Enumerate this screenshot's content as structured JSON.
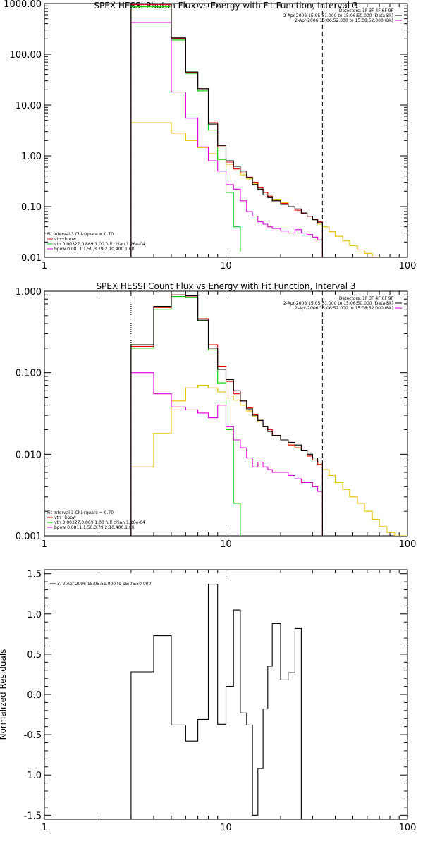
{
  "colors": {
    "data": "#000000",
    "total": "#e00000",
    "vth": "#00cc00",
    "bpow": "#dd00dd",
    "bkg": "#e6c000",
    "frame": "#000000"
  },
  "chart_data": [
    {
      "type": "line",
      "title": "SPEX HESSI Photon Flux vs Energy with Fit Function, Interval 3",
      "xscale": "log",
      "yscale": "log",
      "xlim": [
        1,
        100
      ],
      "ylim": [
        0.01,
        1000
      ],
      "xticks": [
        {
          "v": 1,
          "label": "1"
        },
        {
          "v": 10,
          "label": "10"
        },
        {
          "v": 100,
          "label": "100"
        }
      ],
      "yticks": [
        {
          "v": 0.01,
          "label": "0.01"
        },
        {
          "v": 0.1,
          "label": "0.10"
        },
        {
          "v": 1,
          "label": "1.00"
        },
        {
          "v": 10,
          "label": "10.00"
        },
        {
          "v": 100,
          "label": "100.00"
        },
        {
          "v": 1000,
          "label": "1000.00"
        }
      ],
      "xlabel": "",
      "ylabel": "",
      "vlines": [
        {
          "x": 3.0,
          "style": "dotted"
        },
        {
          "x": 34,
          "style": "dashed"
        }
      ],
      "legend_top": {
        "position": "top-right",
        "lines": [
          {
            "text": "Detectors: 1F 3F 4F 6F 9F",
            "color": ""
          },
          {
            "text": "2-Apr-2006 15:05:51.000 to 15:06:50.000 (Data-Bk)",
            "color": "#000000"
          },
          {
            "text": "2-Apr-2006 15:06:52.000 to 15:08:52.000 (Bk)",
            "color": "#dd00dd"
          }
        ]
      },
      "legend_bottom": {
        "position": "bottom-left",
        "lines": [
          {
            "text": "Fit Interval 3   Chi-square = 0.70",
            "color": ""
          },
          {
            "text": "vth+bpow",
            "color": "#e00000"
          },
          {
            "text": "vth 0.00327,0.869,1.00   full chian 1.26e-04",
            "color": "#00cc00"
          },
          {
            "text": "bpow 0.0811,1.50,3.79,2.10,400,1.00",
            "color": "#dd00dd"
          }
        ]
      },
      "series": [
        {
          "key": "data",
          "edges": [
            3,
            4,
            5,
            6,
            7,
            8,
            9,
            10,
            11,
            12,
            13,
            14,
            15,
            16,
            17,
            18,
            20,
            22,
            24,
            26,
            28,
            30,
            32,
            34
          ],
          "values": [
            1000,
            1000,
            210,
            45,
            21,
            4.2,
            1.6,
            0.8,
            0.62,
            0.5,
            0.37,
            0.27,
            0.22,
            0.17,
            0.15,
            0.13,
            0.11,
            0.1,
            0.09,
            0.075,
            0.065,
            0.055,
            0.048
          ]
        },
        {
          "key": "total",
          "edges": [
            3,
            4,
            5,
            6,
            7,
            8,
            9,
            10,
            11,
            12,
            13,
            14,
            15,
            16,
            17,
            18,
            20,
            22,
            24,
            26,
            28,
            30,
            32,
            34
          ],
          "values": [
            950,
            950,
            205,
            44,
            21,
            4.5,
            1.5,
            0.75,
            0.55,
            0.46,
            0.38,
            0.3,
            0.24,
            0.19,
            0.16,
            0.13,
            0.115,
            0.1,
            0.085,
            0.074,
            0.064,
            0.056,
            0.05
          ]
        },
        {
          "key": "vth",
          "edges": [
            3,
            4,
            5,
            6,
            7,
            8,
            9,
            10,
            11,
            12
          ],
          "values": [
            860,
            860,
            190,
            42,
            19,
            3.2,
            0.85,
            0.19,
            0.04,
            0.013
          ]
        },
        {
          "key": "bpow",
          "edges": [
            3,
            4,
            5,
            6,
            7,
            8,
            9,
            10,
            11,
            12,
            13,
            14,
            15,
            16,
            17,
            18,
            20,
            22,
            24,
            26,
            28,
            30,
            32,
            34
          ],
          "values": [
            420,
            420,
            18,
            5.5,
            1.5,
            0.8,
            0.5,
            0.27,
            0.22,
            0.13,
            0.08,
            0.065,
            0.05,
            0.045,
            0.04,
            0.037,
            0.033,
            0.03,
            0.035,
            0.03,
            0.028,
            0.025,
            0.022
          ]
        },
        {
          "key": "bkg",
          "edges": [
            3,
            4,
            5,
            6,
            7,
            8,
            9,
            10,
            11,
            12,
            13,
            14,
            15,
            16,
            17,
            18,
            20,
            22,
            24,
            26,
            28,
            30,
            32,
            34,
            37,
            40,
            44,
            48,
            53,
            58,
            64,
            70
          ],
          "values": [
            4.5,
            4.5,
            2.8,
            2,
            1.45,
            1.1,
            0.85,
            0.68,
            0.55,
            0.42,
            0.35,
            0.28,
            0.22,
            0.19,
            0.16,
            0.14,
            0.12,
            0.1,
            0.085,
            0.075,
            0.065,
            0.055,
            0.045,
            0.04,
            0.032,
            0.026,
            0.021,
            0.017,
            0.014,
            0.012,
            0.01
          ]
        }
      ]
    },
    {
      "type": "line",
      "title": "SPEX HESSI Count Flux vs Energy with Fit Function, Interval 3",
      "xscale": "log",
      "yscale": "log",
      "xlim": [
        1,
        100
      ],
      "ylim": [
        0.001,
        1
      ],
      "xticks": [
        {
          "v": 1,
          "label": "1"
        },
        {
          "v": 10,
          "label": "10"
        },
        {
          "v": 100,
          "label": "100"
        }
      ],
      "yticks": [
        {
          "v": 0.001,
          "label": "0.001"
        },
        {
          "v": 0.01,
          "label": "0.010"
        },
        {
          "v": 0.1,
          "label": "0.100"
        },
        {
          "v": 1,
          "label": "1.000"
        }
      ],
      "xlabel": "",
      "ylabel": "",
      "vlines": [
        {
          "x": 3.0,
          "style": "dotted"
        },
        {
          "x": 34,
          "style": "dashed"
        }
      ],
      "legend_top": {
        "position": "top-right",
        "lines": [
          {
            "text": "Detectors: 1F 3F 4F 6F 9F",
            "color": ""
          },
          {
            "text": "2-Apr-2006 15:05:51.000 to 15:06:50.000 (Data-Bk)",
            "color": "#000000"
          },
          {
            "text": "2-Apr-2006 15:06:52.000 to 15:08:52.000 (Bk)",
            "color": "#dd00dd"
          }
        ]
      },
      "legend_bottom": {
        "position": "bottom-left",
        "lines": [
          {
            "text": "Fit Interval 3   Chi-square = 0.70",
            "color": ""
          },
          {
            "text": "vth+bpow",
            "color": "#e00000"
          },
          {
            "text": "vth 0.00327,0.869,1.00   full chian 1.26e-04",
            "color": "#00cc00"
          },
          {
            "text": "bpow 0.0811,1.50,3.79,2.10,400,1.00",
            "color": "#dd00dd"
          }
        ]
      },
      "series": [
        {
          "key": "data",
          "edges": [
            3,
            4,
            5,
            6,
            7,
            8,
            9,
            10,
            11,
            12,
            13,
            14,
            15,
            16,
            17,
            18,
            20,
            22,
            24,
            26,
            28,
            30,
            32,
            34
          ],
          "values": [
            0.22,
            0.65,
            0.9,
            0.88,
            0.44,
            0.2,
            0.11,
            0.082,
            0.06,
            0.045,
            0.036,
            0.03,
            0.026,
            0.022,
            0.019,
            0.017,
            0.015,
            0.014,
            0.013,
            0.011,
            0.01,
            0.009,
            0.008
          ]
        },
        {
          "key": "total",
          "edges": [
            3,
            4,
            5,
            6,
            7,
            8,
            9,
            10,
            11,
            12,
            13,
            14,
            15,
            16,
            17,
            18,
            20,
            22,
            24,
            26,
            28,
            30,
            32,
            34
          ],
          "values": [
            0.21,
            0.63,
            0.9,
            0.87,
            0.46,
            0.22,
            0.12,
            0.078,
            0.055,
            0.045,
            0.037,
            0.031,
            0.026,
            0.022,
            0.02,
            0.017,
            0.015,
            0.013,
            0.012,
            0.011,
            0.0095,
            0.0085,
            0.0075
          ]
        },
        {
          "key": "vth",
          "edges": [
            3,
            4,
            5,
            6,
            7,
            8,
            9,
            10,
            11,
            12
          ],
          "values": [
            0.2,
            0.6,
            0.86,
            0.84,
            0.43,
            0.19,
            0.075,
            0.02,
            0.0025,
            0.001
          ]
        },
        {
          "key": "bpow",
          "edges": [
            3,
            4,
            5,
            6,
            7,
            8,
            9,
            10,
            11,
            12,
            13,
            14,
            15,
            16,
            17,
            18,
            20,
            22,
            24,
            26,
            28,
            30,
            32,
            34
          ],
          "values": [
            0.1,
            0.055,
            0.038,
            0.035,
            0.032,
            0.028,
            0.04,
            0.022,
            0.015,
            0.012,
            0.009,
            0.007,
            0.008,
            0.007,
            0.0065,
            0.006,
            0.006,
            0.0055,
            0.005,
            0.0045,
            0.0045,
            0.004,
            0.0035
          ]
        },
        {
          "key": "bkg",
          "edges": [
            3,
            4,
            5,
            6,
            7,
            8,
            9,
            10,
            11,
            12,
            13,
            14,
            15,
            16,
            17,
            18,
            20,
            22,
            24,
            26,
            28,
            30,
            32,
            34,
            37,
            40,
            44,
            48,
            53,
            58,
            64,
            70,
            77,
            85,
            93,
            100
          ],
          "values": [
            0.007,
            0.018,
            0.045,
            0.065,
            0.07,
            0.065,
            0.058,
            0.052,
            0.046,
            0.04,
            0.034,
            0.029,
            0.025,
            0.022,
            0.019,
            0.017,
            0.015,
            0.013,
            0.012,
            0.011,
            0.0095,
            0.0085,
            0.0075,
            0.0065,
            0.0055,
            0.0045,
            0.0037,
            0.003,
            0.0025,
            0.002,
            0.0016,
            0.0013,
            0.0011,
            0.001,
            0.001
          ]
        }
      ]
    },
    {
      "type": "line",
      "title": "",
      "xscale": "log",
      "yscale": "linear",
      "xlim": [
        1,
        100
      ],
      "ylim": [
        -1.55,
        1.55
      ],
      "xticks": [
        {
          "v": 1,
          "label": "1"
        },
        {
          "v": 10,
          "label": "10"
        },
        {
          "v": 100,
          "label": "100"
        }
      ],
      "yticks": [
        {
          "v": -1.5,
          "label": "-1.5"
        },
        {
          "v": -1.0,
          "label": "-1.0"
        },
        {
          "v": -0.5,
          "label": "-0.5"
        },
        {
          "v": 0.0,
          "label": "0.0"
        },
        {
          "v": 0.5,
          "label": "0.5"
        },
        {
          "v": 1.0,
          "label": "1.0"
        },
        {
          "v": 1.5,
          "label": "1.5"
        }
      ],
      "xlabel": "",
      "ylabel": "Normalized Residuals",
      "vlines": [],
      "legend_top": {
        "position": "top-left",
        "lines": [
          {
            "text": "3.  2-Apr-2006 15:05:51.000 to 15:06:50.000",
            "color": "#000000"
          }
        ]
      },
      "legend_bottom": {
        "position": "bottom-left",
        "lines": []
      },
      "series": [
        {
          "key": "data",
          "edges": [
            3,
            4,
            5,
            6,
            7,
            8,
            9,
            10,
            11,
            12,
            13,
            14,
            15,
            16,
            17,
            18,
            20,
            22,
            24,
            26,
            28,
            30,
            32,
            34
          ],
          "values": [
            0.28,
            0.73,
            -0.38,
            -0.58,
            -0.31,
            1.37,
            -0.37,
            0.1,
            1.05,
            -0.23,
            -0.38,
            -1.5,
            -0.92,
            -0.18,
            0.35,
            0.88,
            0.18,
            0.27,
            0.82,
            -1.55,
            -1.55,
            -1.55,
            -1.55
          ]
        }
      ]
    }
  ]
}
